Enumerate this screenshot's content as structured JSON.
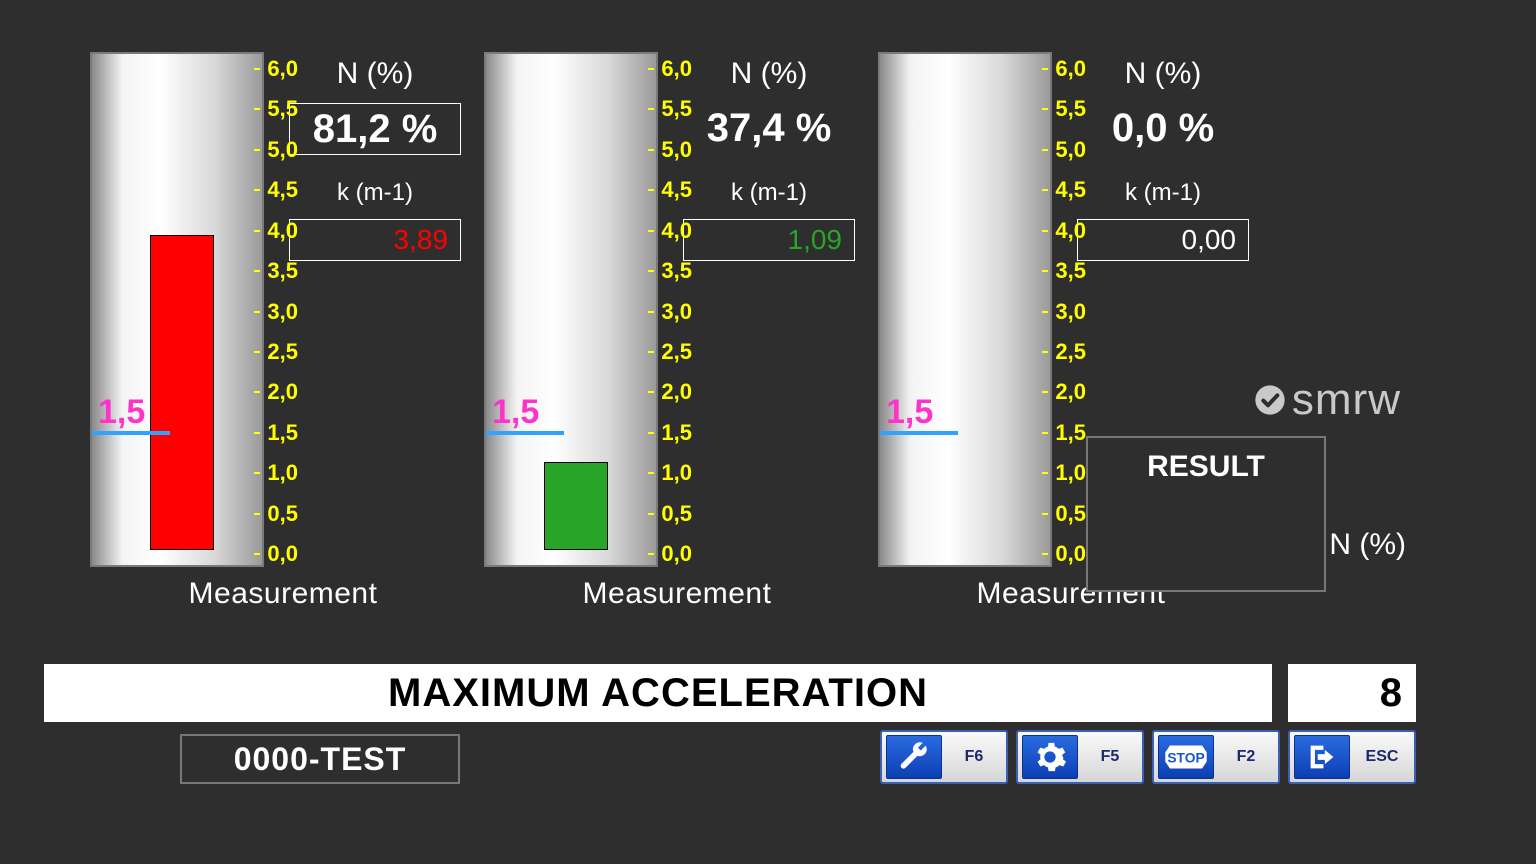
{
  "scale": {
    "min": 0.0,
    "max": 6.0,
    "ticks": [
      "0,0",
      "0,5",
      "1,0",
      "1,5",
      "2,0",
      "2,5",
      "3,0",
      "3,5",
      "4,0",
      "4,5",
      "5,0",
      "5,5",
      "6,0"
    ],
    "tick_color": "#ffff00",
    "tick_fontsize": 22
  },
  "threshold": {
    "value": 1.5,
    "label": "1,5",
    "label_color": "#ff33cc",
    "line_color": "#2ea3ff",
    "line_width": 4
  },
  "gauges": [
    {
      "bar_value": 3.9,
      "bar_color": "#ff0000",
      "n_label": "N (%)",
      "n_value": "81,2 %",
      "n_boxed": true,
      "k_label": "k (m-1)",
      "k_value": "3,89",
      "k_color": "#ff0000",
      "meas_label": "Measurement"
    },
    {
      "bar_value": 1.09,
      "bar_color": "#28a428",
      "n_label": "N (%)",
      "n_value": "37,4 %",
      "n_boxed": false,
      "k_label": "k (m-1)",
      "k_value": "1,09",
      "k_color": "#28a428",
      "meas_label": "Measurement"
    },
    {
      "bar_value": 0.0,
      "bar_color": "#ff0000",
      "n_label": "N (%)",
      "n_value": "0,0 %",
      "n_boxed": false,
      "k_label": "k (m-1)",
      "k_value": "0,00",
      "k_color": "#ffffff",
      "meas_label": "Measurement"
    }
  ],
  "logo_text": "smrw",
  "result": {
    "title": "RESULT",
    "n_label": "N (%)"
  },
  "status_text": "MAXIMUM ACCELERATION",
  "counter": "8",
  "test_id": "0000-TEST",
  "fkeys": [
    {
      "name": "wrench-icon",
      "label": "F6"
    },
    {
      "name": "gear-icon",
      "label": "F5"
    },
    {
      "name": "stop-icon",
      "label": "F2"
    },
    {
      "name": "exit-icon",
      "label": "ESC"
    }
  ],
  "colors": {
    "bg": "#2e2e2e",
    "text": "#ffffff",
    "accent_blue": "#1457d6"
  }
}
